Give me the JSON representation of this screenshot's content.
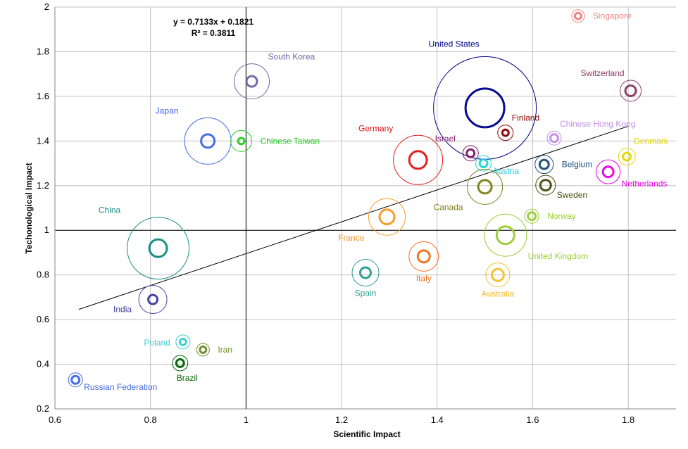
{
  "chart_data": {
    "type": "scatter",
    "subtype": "bubble",
    "xlabel": "Scientific Impact",
    "ylabel": "Techonological Impact",
    "xlim": [
      0.6,
      1.9
    ],
    "ylim": [
      0.2,
      2.0
    ],
    "xticks": [
      "0.6",
      "0.8",
      "1",
      "1.2",
      "1.4",
      "1.6",
      "1.8"
    ],
    "yticks": [
      "0.2",
      "0.4",
      "0.6",
      "0.8",
      "1",
      "1.2",
      "1.4",
      "1.6",
      "1.8",
      "2"
    ],
    "grid": true,
    "reference_lines": {
      "x": 1,
      "y": 1
    },
    "trendline": {
      "slope": 0.7133,
      "intercept": 0.1821,
      "r_squared": 0.3811,
      "equation_text": "y = 0.7133x + 0.1821",
      "r2_text": "R² = 0.3811",
      "x_range": [
        0.65,
        1.8
      ]
    },
    "points": [
      {
        "name": "Singapore",
        "x": 1.695,
        "y": 1.96,
        "outer": 9,
        "inner": 4,
        "color": "#f08080",
        "label_pos": "right"
      },
      {
        "name": "Switzerland",
        "x": 1.805,
        "y": 1.625,
        "outer": 15,
        "inner": 7,
        "color": "#8b3a62",
        "label_pos": "above-left"
      },
      {
        "name": "United States",
        "x": 1.5,
        "y": 1.548,
        "outer": 73,
        "inner": 27,
        "color": "#00008b",
        "label_pos": "above"
      },
      {
        "name": "South Korea",
        "x": 1.012,
        "y": 1.667,
        "outer": 25,
        "inner": 7,
        "color": "#6a6aa8",
        "label_pos": "above-right"
      },
      {
        "name": "Japan",
        "x": 0.92,
        "y": 1.4,
        "outer": 33,
        "inner": 9,
        "color": "#4169e1",
        "label_pos": "above-left"
      },
      {
        "name": "Chinese Taiwan",
        "x": 0.99,
        "y": 1.4,
        "outer": 15,
        "inner": 4,
        "color": "#22cc22",
        "label_pos": "right"
      },
      {
        "name": "Finland",
        "x": 1.543,
        "y": 1.437,
        "outer": 11,
        "inner": 4,
        "color": "#8b0000",
        "label_pos": "above-right"
      },
      {
        "name": "Chinese Hong Kong",
        "x": 1.645,
        "y": 1.413,
        "outer": 10,
        "inner": 5,
        "color": "#c38ee8",
        "label_pos": "above-right"
      },
      {
        "name": "Denmark",
        "x": 1.797,
        "y": 1.33,
        "outer": 12,
        "inner": 5,
        "color": "#e6d800",
        "label_pos": "above-right"
      },
      {
        "name": "Germany",
        "x": 1.36,
        "y": 1.315,
        "outer": 35,
        "inner": 12,
        "color": "#e01818",
        "label_pos": "above-left"
      },
      {
        "name": "Israel",
        "x": 1.47,
        "y": 1.345,
        "outer": 11,
        "inner": 5,
        "color": "#7b1a6b",
        "label_pos": "above-left"
      },
      {
        "name": "Austria",
        "x": 1.497,
        "y": 1.3,
        "outer": 11,
        "inner": 5,
        "color": "#23d3e0",
        "label_pos": "right-below"
      },
      {
        "name": "Belgium",
        "x": 1.624,
        "y": 1.295,
        "outer": 13,
        "inner": 6,
        "color": "#1f4e79",
        "label_pos": "right"
      },
      {
        "name": "Netherlands",
        "x": 1.758,
        "y": 1.262,
        "outer": 17,
        "inner": 7,
        "color": "#e600e6",
        "label_pos": "right-below"
      },
      {
        "name": "Sweden",
        "x": 1.627,
        "y": 1.202,
        "outer": 14,
        "inner": 7,
        "color": "#4b4b10",
        "label_pos": "right-below"
      },
      {
        "name": "Canada",
        "x": 1.5,
        "y": 1.195,
        "outer": 25,
        "inner": 9,
        "color": "#808018",
        "label_pos": "below-left"
      },
      {
        "name": "France",
        "x": 1.295,
        "y": 1.06,
        "outer": 26,
        "inner": 10,
        "color": "#f59a23",
        "label_pos": "below-left"
      },
      {
        "name": "Norway",
        "x": 1.598,
        "y": 1.063,
        "outer": 10,
        "inner": 5,
        "color": "#9acd32",
        "label_pos": "right"
      },
      {
        "name": "China",
        "x": 0.816,
        "y": 0.92,
        "outer": 44,
        "inner": 12,
        "color": "#138c82",
        "label_pos": "above-left"
      },
      {
        "name": "United Kingdom",
        "x": 1.543,
        "y": 0.978,
        "outer": 30,
        "inner": 12,
        "color": "#9acd32",
        "label_pos": "right-below"
      },
      {
        "name": "Italy",
        "x": 1.372,
        "y": 0.883,
        "outer": 21,
        "inner": 8,
        "color": "#f07020",
        "label_pos": "below"
      },
      {
        "name": "Spain",
        "x": 1.25,
        "y": 0.81,
        "outer": 19,
        "inner": 7,
        "color": "#2a9d8f",
        "label_pos": "below"
      },
      {
        "name": "Australia",
        "x": 1.527,
        "y": 0.8,
        "outer": 17,
        "inner": 8,
        "color": "#f2c02a",
        "label_pos": "below"
      },
      {
        "name": "India",
        "x": 0.805,
        "y": 0.69,
        "outer": 20,
        "inner": 6,
        "color": "#3f3f9e",
        "label_pos": "left-below"
      },
      {
        "name": "Poland",
        "x": 0.868,
        "y": 0.5,
        "outer": 10,
        "inner": 4,
        "color": "#3ccfcf",
        "label_pos": "left"
      },
      {
        "name": "Iran",
        "x": 0.91,
        "y": 0.465,
        "outer": 9,
        "inner": 4,
        "color": "#6b8e23",
        "label_pos": "right"
      },
      {
        "name": "Brazil",
        "x": 0.862,
        "y": 0.405,
        "outer": 11,
        "inner": 5,
        "color": "#006400",
        "label_pos": "below-right"
      },
      {
        "name": "Russian Federation",
        "x": 0.643,
        "y": 0.33,
        "outer": 10,
        "inner": 5,
        "color": "#4169e1",
        "label_pos": "right-below"
      }
    ]
  }
}
